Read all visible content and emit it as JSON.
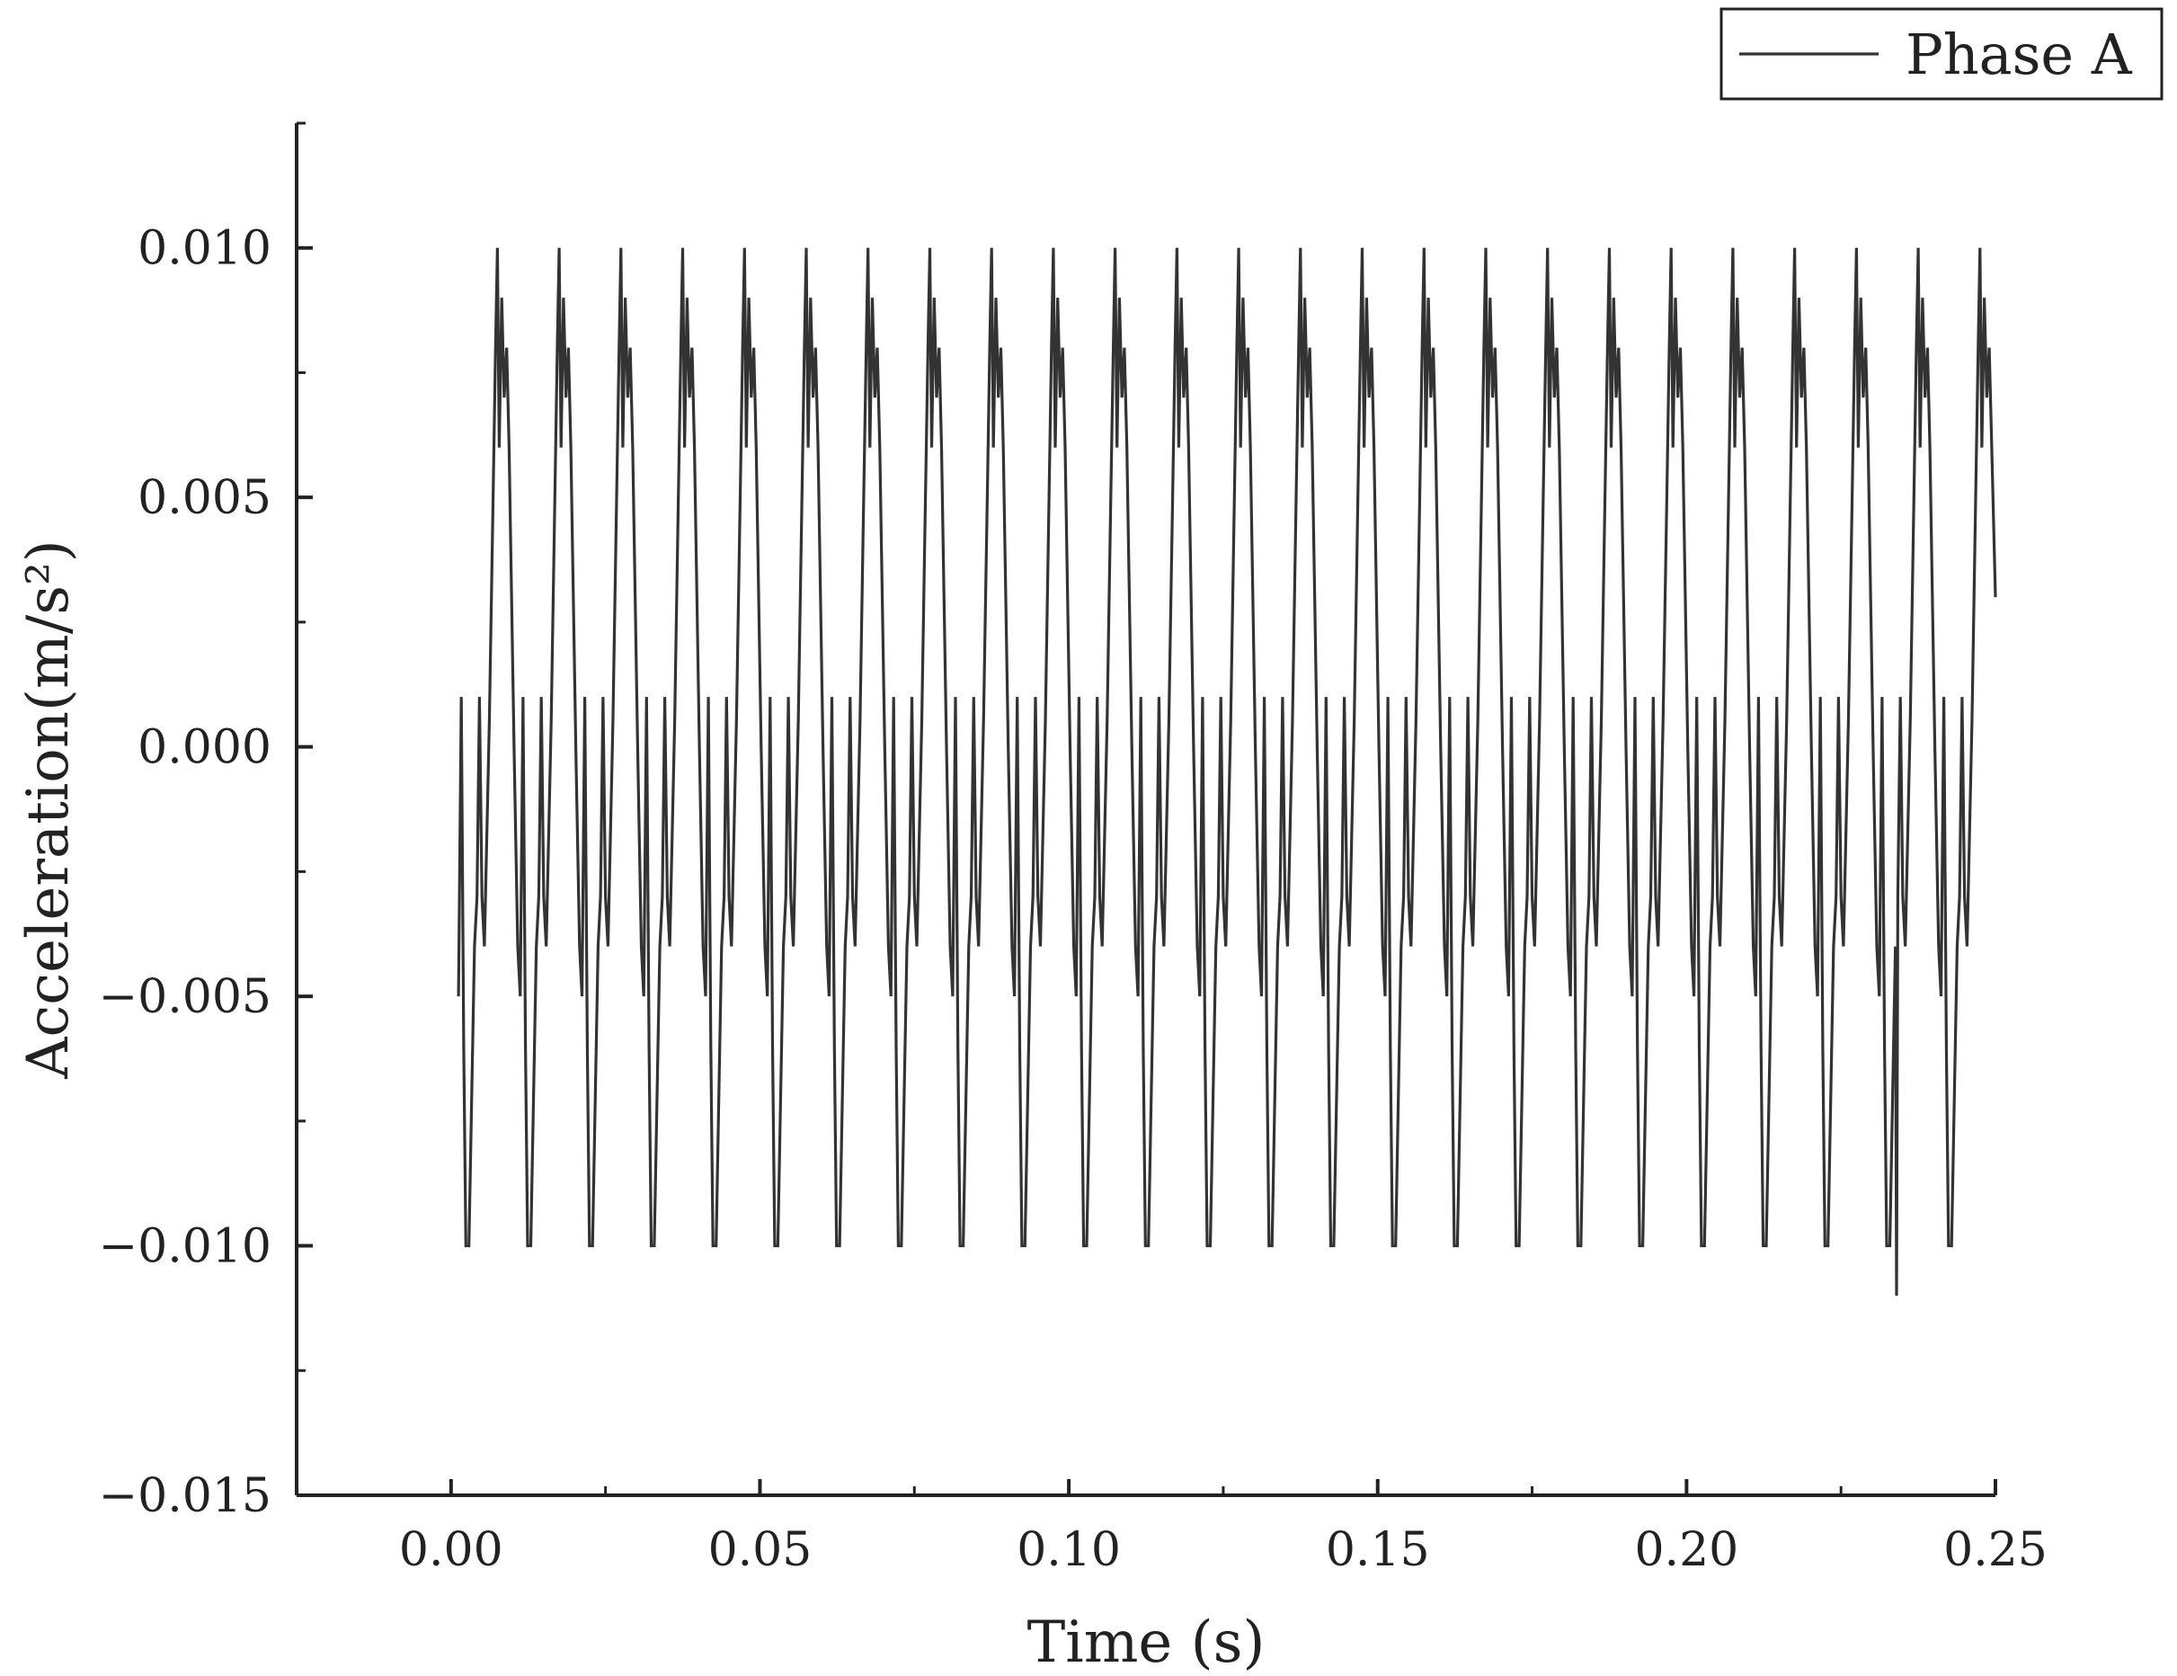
{
  "chart_data": {
    "type": "line",
    "title": "",
    "xlabel": "Time (s)",
    "ylabel": "Acceleration(m/s²)",
    "xlim": [
      -0.025,
      0.25
    ],
    "ylim": [
      -0.015,
      0.0125
    ],
    "x_ticks": [
      {
        "value": 0.0,
        "label": "0.00"
      },
      {
        "value": 0.05,
        "label": "0.05"
      },
      {
        "value": 0.1,
        "label": "0.10"
      },
      {
        "value": 0.15,
        "label": "0.15"
      },
      {
        "value": 0.2,
        "label": "0.20"
      },
      {
        "value": 0.25,
        "label": "0.25"
      }
    ],
    "y_ticks": [
      {
        "value": 0.01,
        "label": "0.010"
      },
      {
        "value": 0.005,
        "label": "0.005"
      },
      {
        "value": 0.0,
        "label": "0.000"
      },
      {
        "value": -0.005,
        "label": "−0.005"
      },
      {
        "value": -0.01,
        "label": "−0.010"
      },
      {
        "value": -0.015,
        "label": "−0.015"
      }
    ],
    "grid": false,
    "legend": {
      "position": "top-right",
      "entries": [
        "Phase A"
      ]
    },
    "series": [
      {
        "name": "Phase A",
        "color": "#333333",
        "period": 0.01,
        "start": 0.0012,
        "end": 0.25,
        "cycle_shape": [
          [
            0.0,
            -0.005
          ],
          [
            0.045,
            0.001
          ],
          [
            0.085,
            -0.006
          ],
          [
            0.12,
            -0.01
          ],
          [
            0.17,
            -0.01
          ],
          [
            0.26,
            -0.004
          ],
          [
            0.3,
            -0.003
          ],
          [
            0.34,
            0.001
          ],
          [
            0.38,
            -0.003
          ],
          [
            0.42,
            -0.004
          ],
          [
            0.5,
            0.0005
          ],
          [
            0.56,
            0.005
          ],
          [
            0.6,
            0.008
          ],
          [
            0.63,
            0.01
          ],
          [
            0.66,
            0.006
          ],
          [
            0.7,
            0.009
          ],
          [
            0.74,
            0.007
          ],
          [
            0.78,
            0.008
          ],
          [
            0.82,
            0.006
          ],
          [
            0.9,
            0.0
          ],
          [
            0.96,
            -0.004
          ],
          [
            1.0,
            -0.005
          ]
        ],
        "anomalies": [
          {
            "x": 0.234,
            "y": -0.011
          }
        ],
        "final_point": {
          "x": 0.25,
          "y": 0.003
        }
      }
    ]
  }
}
